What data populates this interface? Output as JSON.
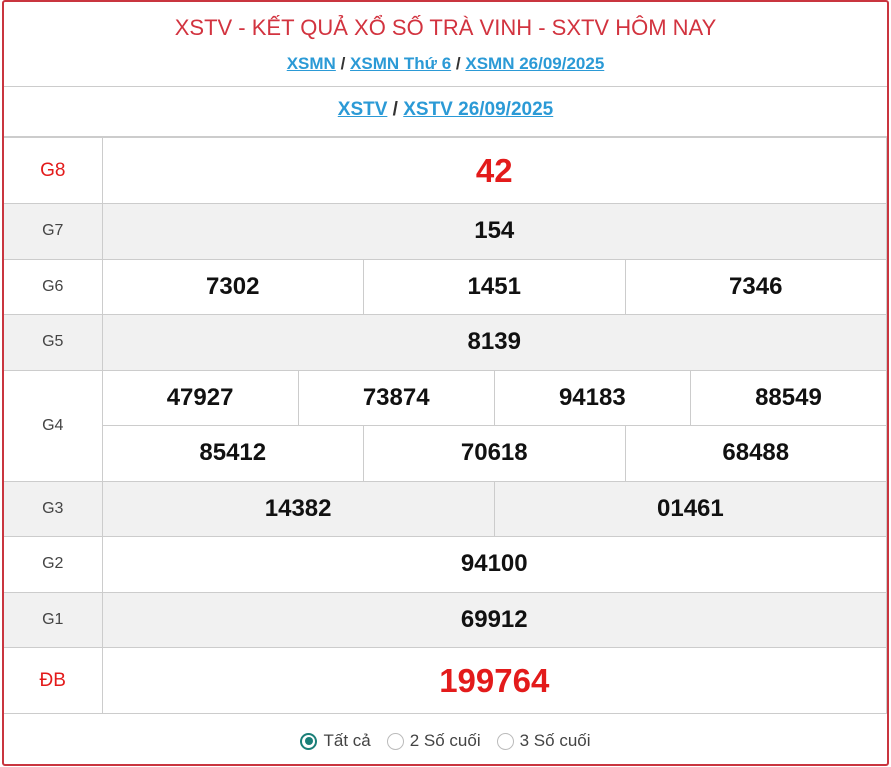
{
  "header": {
    "title": "XSTV - KẾT QUẢ XỔ SỐ TRÀ VINH - SXTV HÔM NAY",
    "breadcrumb1": [
      "XSMN",
      "XSMN Thứ 6",
      "XSMN 26/09/2025"
    ],
    "breadcrumb2": [
      "XSTV",
      "XSTV 26/09/2025"
    ],
    "separator": "/"
  },
  "prizes": {
    "g8": {
      "label": "G8",
      "values": [
        "42"
      ]
    },
    "g7": {
      "label": "G7",
      "values": [
        "154"
      ]
    },
    "g6": {
      "label": "G6",
      "values": [
        "7302",
        "1451",
        "7346"
      ]
    },
    "g5": {
      "label": "G5",
      "values": [
        "8139"
      ]
    },
    "g4": {
      "label": "G4",
      "values": [
        "47927",
        "73874",
        "94183",
        "88549",
        "85412",
        "70618",
        "68488"
      ]
    },
    "g3": {
      "label": "G3",
      "values": [
        "14382",
        "01461"
      ]
    },
    "g2": {
      "label": "G2",
      "values": [
        "94100"
      ]
    },
    "g1": {
      "label": "G1",
      "values": [
        "69912"
      ]
    },
    "db": {
      "label": "ĐB",
      "values": [
        "199764"
      ]
    }
  },
  "filter": {
    "options": [
      "Tất cả",
      "2 Số cuối",
      "3 Số cuối"
    ],
    "selected": "Tất cả"
  },
  "colors": {
    "accent": "#d2333f",
    "link": "#2b9ad6",
    "highlight": "#e31b1b",
    "radio": "#1a7f78"
  }
}
